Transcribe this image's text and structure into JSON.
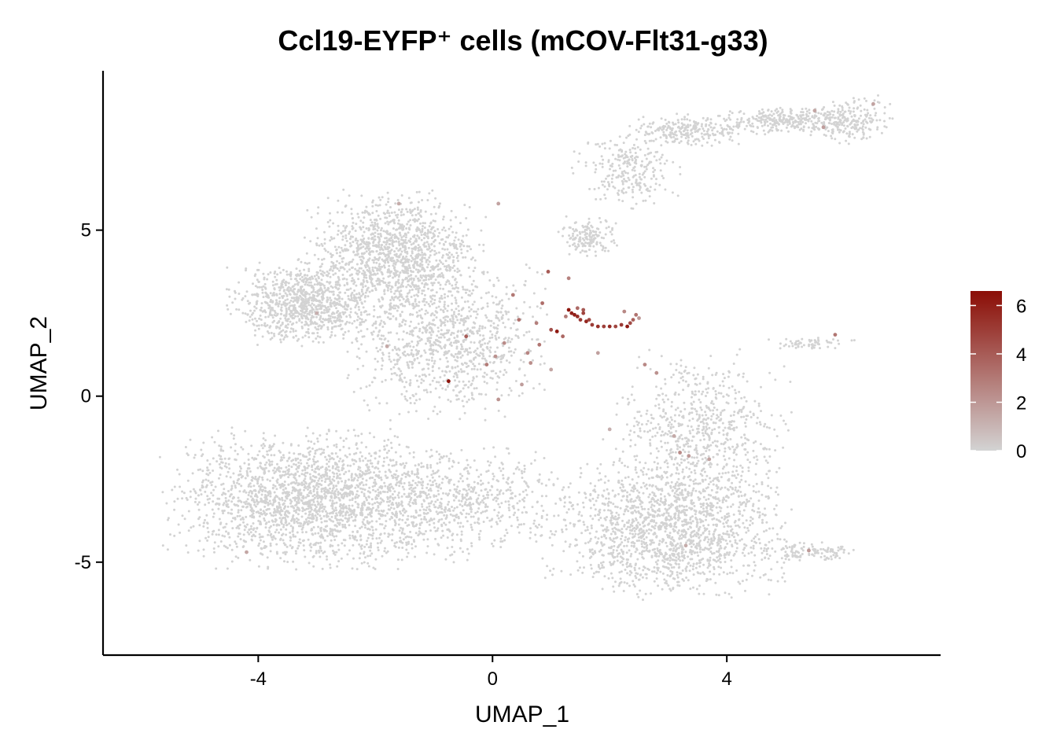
{
  "chart_data": {
    "type": "scatter",
    "title": "Ccl19-EYFP⁺ cells (mCOV-Flt31-g33)",
    "xlabel": "UMAP_1",
    "ylabel": "UMAP_2",
    "xlim": [
      -6.65,
      7.65
    ],
    "ylim": [
      -7.8,
      9.8
    ],
    "x_ticks": [
      -4,
      0,
      4
    ],
    "y_ticks": [
      -5,
      0,
      5
    ],
    "x_tick_labels": [
      "-4",
      "0",
      "4"
    ],
    "y_tick_labels": [
      "-5",
      "0",
      "5"
    ],
    "grid": false,
    "legend": {
      "placement": "right",
      "type": "colorbar",
      "range": [
        0,
        6.6
      ],
      "ticks": [
        0,
        2,
        4,
        6
      ],
      "tick_labels": [
        "0",
        "2",
        "4",
        "6"
      ],
      "low_color": "#D3D3D3",
      "high_color": "#8B0D05"
    },
    "background_point_color": "#D3D3D3",
    "clusters": [
      {
        "region": "left lobe",
        "cx": -3.2,
        "cy": 2.8,
        "rx": 1.0,
        "ry": 1.0,
        "count": 900
      },
      {
        "region": "upper-left",
        "cx": -1.7,
        "cy": 4.2,
        "rx": 1.2,
        "ry": 1.5,
        "count": 1300
      },
      {
        "region": "center-upper",
        "cx": -0.8,
        "cy": 1.7,
        "rx": 1.3,
        "ry": 1.8,
        "count": 1000
      },
      {
        "region": "bottom-left",
        "cx": -3.0,
        "cy": -3.1,
        "rx": 2.0,
        "ry": 1.6,
        "count": 2200
      },
      {
        "region": "bottom-center",
        "cx": -0.5,
        "cy": -3.2,
        "rx": 1.5,
        "ry": 1.3,
        "count": 550
      },
      {
        "region": "bottom-right",
        "cx": 3.0,
        "cy": -4.0,
        "rx": 1.6,
        "ry": 1.6,
        "count": 1600
      },
      {
        "region": "right-middle",
        "cx": 3.5,
        "cy": -1.2,
        "rx": 1.2,
        "ry": 2.0,
        "count": 700
      },
      {
        "region": "top arc A",
        "cx": 2.3,
        "cy": 6.8,
        "rx": 0.7,
        "ry": 0.9,
        "count": 250
      },
      {
        "region": "top arc B",
        "cx": 3.3,
        "cy": 8.0,
        "rx": 0.8,
        "ry": 0.4,
        "count": 250
      },
      {
        "region": "top arc C",
        "cx": 5.0,
        "cy": 8.3,
        "rx": 0.9,
        "ry": 0.35,
        "count": 300
      },
      {
        "region": "top arc D",
        "cx": 6.1,
        "cy": 8.3,
        "rx": 0.55,
        "ry": 0.6,
        "count": 200
      },
      {
        "region": "mid strand",
        "cx": 1.6,
        "cy": 4.8,
        "rx": 0.4,
        "ry": 0.5,
        "count": 150
      },
      {
        "region": "right tail",
        "cx": 5.4,
        "cy": 1.6,
        "rx": 0.6,
        "ry": 0.15,
        "count": 60
      },
      {
        "region": "bottom-right tail",
        "cx": 5.4,
        "cy": -4.7,
        "rx": 0.7,
        "ry": 0.25,
        "count": 120
      }
    ],
    "highlighted_points": [
      {
        "x": 1.3,
        "y": 2.6,
        "value": 6.3
      },
      {
        "x": 1.35,
        "y": 2.5,
        "value": 5.9
      },
      {
        "x": 1.4,
        "y": 2.45,
        "value": 6.0
      },
      {
        "x": 1.45,
        "y": 2.4,
        "value": 5.5
      },
      {
        "x": 1.5,
        "y": 2.3,
        "value": 5.2
      },
      {
        "x": 1.55,
        "y": 2.5,
        "value": 4.8
      },
      {
        "x": 1.6,
        "y": 2.25,
        "value": 5.7
      },
      {
        "x": 1.65,
        "y": 2.3,
        "value": 4.6
      },
      {
        "x": 1.7,
        "y": 2.15,
        "value": 5.0
      },
      {
        "x": 1.8,
        "y": 2.1,
        "value": 5.4
      },
      {
        "x": 1.9,
        "y": 2.1,
        "value": 4.9
      },
      {
        "x": 2.0,
        "y": 2.1,
        "value": 5.6
      },
      {
        "x": 2.1,
        "y": 2.1,
        "value": 4.7
      },
      {
        "x": 2.2,
        "y": 2.15,
        "value": 5.1
      },
      {
        "x": 2.3,
        "y": 2.1,
        "value": 6.1
      },
      {
        "x": 2.35,
        "y": 2.2,
        "value": 4.5
      },
      {
        "x": 2.4,
        "y": 2.3,
        "value": 3.8
      },
      {
        "x": 2.45,
        "y": 2.45,
        "value": 3.2
      },
      {
        "x": 2.25,
        "y": 2.55,
        "value": 2.5
      },
      {
        "x": 2.5,
        "y": 2.35,
        "value": 2.0
      },
      {
        "x": 1.45,
        "y": 2.65,
        "value": 3.5
      },
      {
        "x": 1.55,
        "y": 2.6,
        "value": 4.1
      },
      {
        "x": 1.25,
        "y": 2.4,
        "value": 3.0
      },
      {
        "x": 1.1,
        "y": 1.95,
        "value": 6.2
      },
      {
        "x": 1.0,
        "y": 2.0,
        "value": 4.4
      },
      {
        "x": 0.95,
        "y": 3.75,
        "value": 4.0
      },
      {
        "x": 1.2,
        "y": 1.8,
        "value": 3.6
      },
      {
        "x": 0.85,
        "y": 2.8,
        "value": 3.4
      },
      {
        "x": 0.75,
        "y": 2.2,
        "value": 2.8
      },
      {
        "x": 0.8,
        "y": 1.55,
        "value": 3.1
      },
      {
        "x": 0.6,
        "y": 1.3,
        "value": 2.6
      },
      {
        "x": 0.45,
        "y": 2.3,
        "value": 3.3
      },
      {
        "x": 0.35,
        "y": 3.05,
        "value": 3.0
      },
      {
        "x": 0.2,
        "y": 1.6,
        "value": 2.4
      },
      {
        "x": 0.05,
        "y": 1.2,
        "value": 2.2
      },
      {
        "x": -0.1,
        "y": 0.95,
        "value": 2.9
      },
      {
        "x": -0.45,
        "y": 1.8,
        "value": 3.9
      },
      {
        "x": -0.75,
        "y": 0.45,
        "value": 6.4
      },
      {
        "x": 0.1,
        "y": -0.1,
        "value": 2.1
      },
      {
        "x": 1.3,
        "y": 3.55,
        "value": 2.7
      },
      {
        "x": 0.65,
        "y": 1.0,
        "value": 2.3
      },
      {
        "x": 0.5,
        "y": 0.35,
        "value": 1.8
      },
      {
        "x": 2.6,
        "y": 0.95,
        "value": 2.5
      },
      {
        "x": 2.8,
        "y": 0.7,
        "value": 2.2
      },
      {
        "x": 3.2,
        "y": -1.7,
        "value": 2.4
      },
      {
        "x": 3.35,
        "y": -1.8,
        "value": 2.0
      },
      {
        "x": 3.7,
        "y": -1.9,
        "value": 1.6
      },
      {
        "x": 3.1,
        "y": -1.2,
        "value": 1.4
      },
      {
        "x": 5.85,
        "y": 1.85,
        "value": 3.1
      },
      {
        "x": 5.65,
        "y": 8.1,
        "value": 1.8
      },
      {
        "x": 5.5,
        "y": 8.6,
        "value": 1.5
      },
      {
        "x": 6.5,
        "y": 8.8,
        "value": 1.6
      },
      {
        "x": 5.4,
        "y": -4.65,
        "value": 1.9
      },
      {
        "x": -4.2,
        "y": -4.7,
        "value": 1.5
      },
      {
        "x": -1.8,
        "y": 1.5,
        "value": 1.4
      },
      {
        "x": -3.0,
        "y": 2.5,
        "value": 1.2
      },
      {
        "x": 0.1,
        "y": 5.8,
        "value": 1.6
      },
      {
        "x": -1.6,
        "y": 5.8,
        "value": 1.3
      },
      {
        "x": 1.8,
        "y": 1.3,
        "value": 1.7
      },
      {
        "x": 1.0,
        "y": 0.8,
        "value": 1.5
      },
      {
        "x": 3.3,
        "y": -4.5,
        "value": 1.3
      },
      {
        "x": 2.0,
        "y": -1.0,
        "value": 1.2
      }
    ]
  }
}
